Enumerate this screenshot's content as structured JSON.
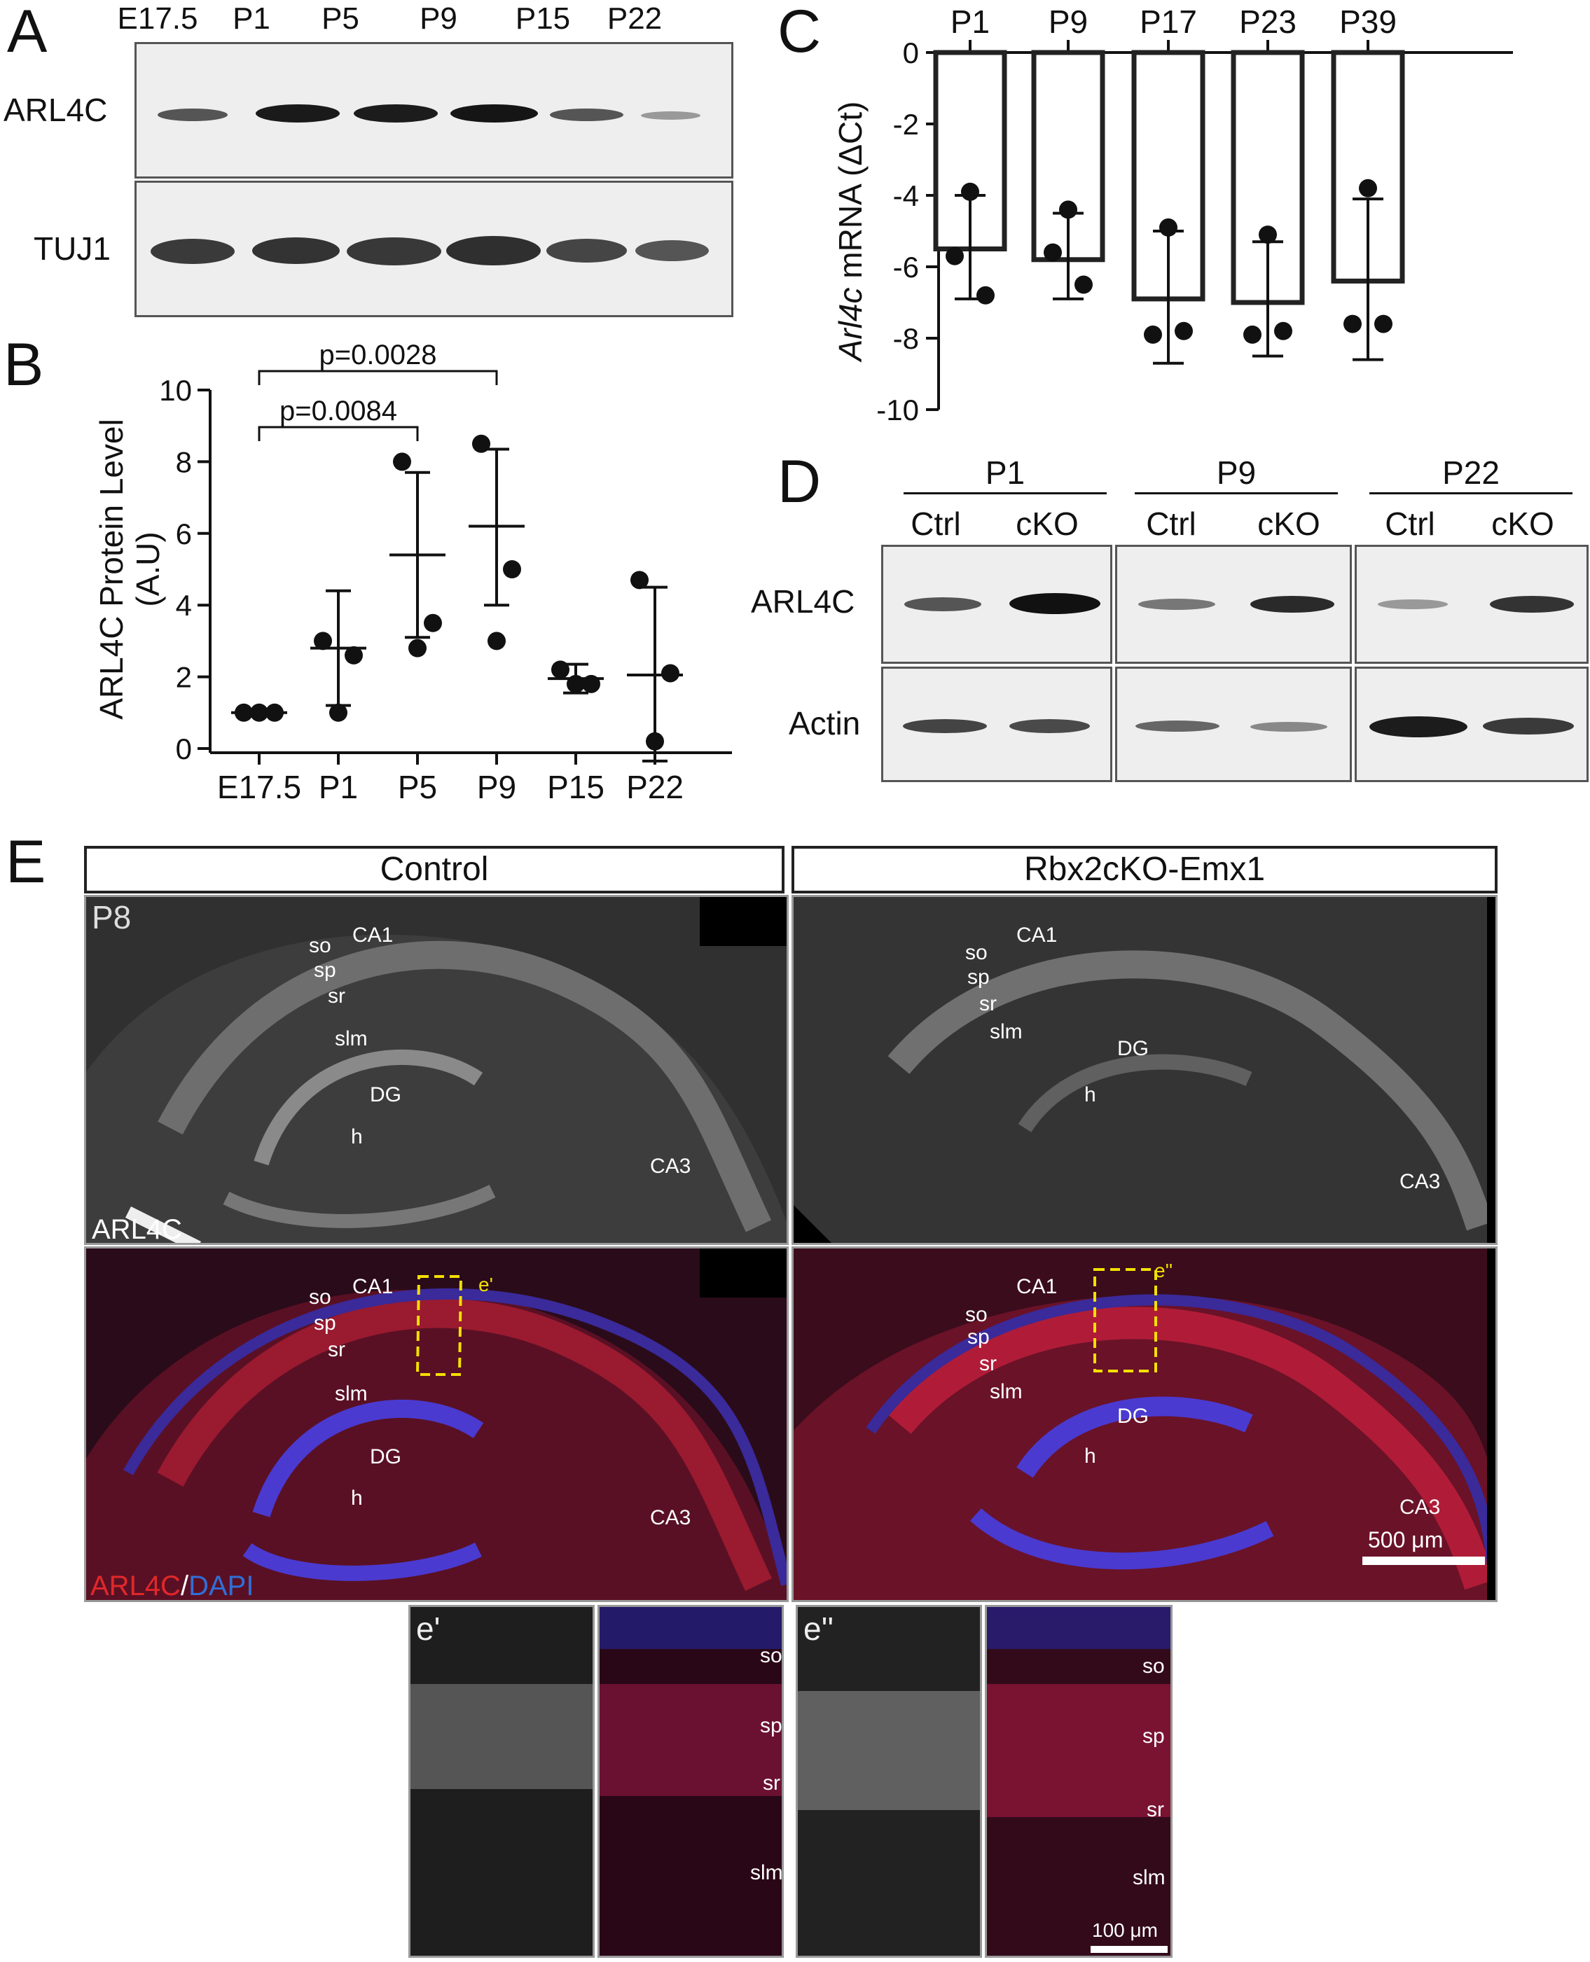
{
  "panels": {
    "a": "A",
    "b": "B",
    "c": "C",
    "d": "D",
    "e": "E"
  },
  "panel_a": {
    "lanes": [
      "E17.5",
      "P1",
      "P5",
      "P9",
      "P15",
      "P22"
    ],
    "rows": [
      "ARL4C",
      "TUJ1"
    ]
  },
  "chart_data": [
    {
      "id": "B",
      "type": "scatter",
      "categories": [
        "E17.5",
        "P1",
        "P5",
        "P9",
        "P15",
        "P22"
      ],
      "ylabel": "ARL4C Protein Level (A.U)",
      "ylim": [
        0,
        10
      ],
      "yticks": [
        0,
        2,
        4,
        6,
        8,
        10
      ],
      "points": [
        [
          1,
          1,
          1
        ],
        [
          3,
          2.6,
          1
        ],
        [
          8,
          3.5,
          2.8
        ],
        [
          8.5,
          5,
          3
        ],
        [
          2.2,
          1.8,
          1.8
        ],
        [
          4.7,
          2.1,
          0.2
        ]
      ],
      "mean": [
        1,
        2.8,
        5.4,
        6.2,
        1.95,
        2.05
      ],
      "sd_low": [
        1,
        1.2,
        3.1,
        4,
        1.55,
        -0.35
      ],
      "sd_high": [
        1,
        4.4,
        7.7,
        8.35,
        2.35,
        4.5
      ],
      "annotations": [
        "p=0.0084",
        "p=0.0028"
      ]
    },
    {
      "id": "C",
      "type": "bar",
      "categories": [
        "P1",
        "P9",
        "P17",
        "P23",
        "P39"
      ],
      "ylabel_italic": "Arl4c",
      "ylabel_rest": " mRNA (ΔCt)",
      "ylim": [
        -10,
        0
      ],
      "yticks": [
        0,
        -2,
        -4,
        -6,
        -8,
        -10
      ],
      "values": [
        -5.5,
        -5.8,
        -6.9,
        -7,
        -6.4
      ],
      "sd_low": [
        -6.9,
        -6.9,
        -8.7,
        -8.5,
        -8.6
      ],
      "sd_high": [
        -4,
        -4.5,
        -5,
        -5.3,
        -4.1
      ],
      "points": [
        [
          -3.9,
          -5.7,
          -6.8
        ],
        [
          -4.4,
          -5.6,
          -6.5
        ],
        [
          -4.9,
          -7.9,
          -7.8
        ],
        [
          -5.1,
          -7.9,
          -7.8
        ],
        [
          -3.8,
          -7.6,
          -7.6
        ]
      ]
    }
  ],
  "panel_d": {
    "groups": [
      "P1",
      "P9",
      "P22"
    ],
    "lanes": [
      "Ctrl",
      "cKO",
      "Ctrl",
      "cKO",
      "Ctrl",
      "cKO"
    ],
    "rows": [
      "ARL4C",
      "Actin"
    ]
  },
  "panel_e": {
    "headers": [
      "Control",
      "Rbx2cKO-Emx1"
    ],
    "age": "P8",
    "stain_gray": "ARL4C",
    "stain_red": "ARL4C",
    "stain_sep": "/",
    "stain_blue": "DAPI",
    "regions": {
      "so": "so",
      "sp": "sp",
      "sr": "sr",
      "slm": "slm",
      "ca1": "CA1",
      "dg": "DG",
      "h": "h",
      "ca3": "CA3"
    },
    "inset_ctrl": "e'",
    "inset_cko": "e''",
    "scale_main": "500 μm",
    "scale_inset": "100 μm",
    "colors": {
      "red": "#e0282a",
      "blue": "#2f6fd8",
      "yellow": "#f3e000"
    }
  }
}
